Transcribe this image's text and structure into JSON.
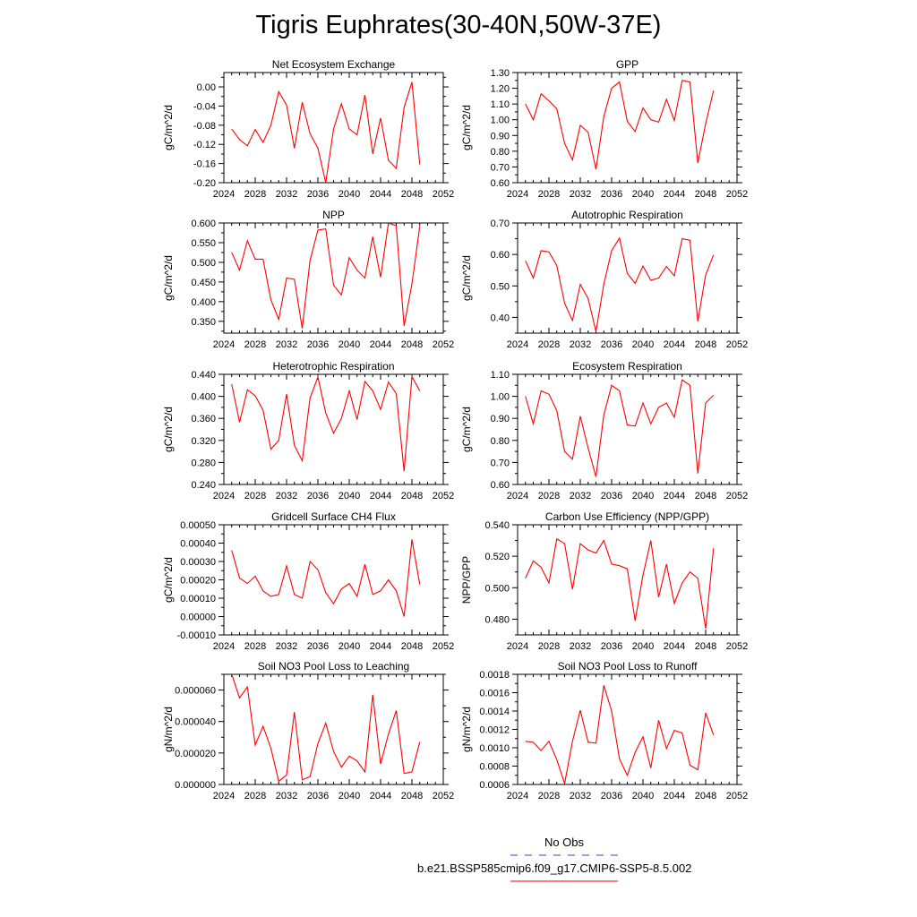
{
  "figure": {
    "title": "Tigris Euphrates(30-40N,50W-37E)"
  },
  "legend": {
    "obs_label": "No Obs",
    "model_label": "b.e21.BSSP585cmip6.f09_g17.CMIP6-SSP5-8.5.002",
    "obs_color": "#3b3bd6",
    "model_color": "#ff0000"
  },
  "chart_data": [
    {
      "type": "line",
      "title": "Net Ecosystem Exchange",
      "ylabel": "gC/m^2/d",
      "xlim": [
        2024,
        2052
      ],
      "xticks": [
        2024,
        2028,
        2032,
        2036,
        2040,
        2044,
        2048,
        2052
      ],
      "xtick_labels": [
        "2024",
        "2028",
        "2032",
        "2036",
        "2040",
        "2044",
        "2048",
        "2052"
      ],
      "ylim": [
        -0.2,
        0.03
      ],
      "yticks": [
        -0.2,
        -0.16,
        -0.12,
        -0.08,
        -0.04,
        0.0
      ],
      "ytick_labels": [
        "-0.20",
        "-0.16",
        "-0.12",
        "-0.08",
        "-0.04",
        "0.00"
      ],
      "x": [
        2025,
        2026,
        2027,
        2028,
        2029,
        2030,
        2031,
        2032,
        2033,
        2034,
        2035,
        2036,
        2037,
        2038,
        2039,
        2040,
        2041,
        2042,
        2043,
        2044,
        2045,
        2046,
        2047,
        2048,
        2049
      ],
      "series": [
        {
          "values": [
            -0.088,
            -0.11,
            -0.123,
            -0.089,
            -0.116,
            -0.08,
            -0.01,
            -0.038,
            -0.128,
            -0.032,
            -0.098,
            -0.128,
            -0.2,
            -0.088,
            -0.035,
            -0.088,
            -0.1,
            -0.017,
            -0.14,
            -0.065,
            -0.153,
            -0.17,
            -0.043,
            0.01,
            -0.162
          ]
        }
      ]
    },
    {
      "type": "line",
      "title": "GPP",
      "ylabel": "gC/m^2/d",
      "xlim": [
        2024,
        2052
      ],
      "xticks": [
        2024,
        2028,
        2032,
        2036,
        2040,
        2044,
        2048,
        2052
      ],
      "xtick_labels": [
        "2024",
        "2028",
        "2032",
        "2036",
        "2040",
        "2044",
        "2048",
        "2052"
      ],
      "ylim": [
        0.6,
        1.3
      ],
      "yticks": [
        0.6,
        0.7,
        0.8,
        0.9,
        1.0,
        1.1,
        1.2,
        1.3
      ],
      "ytick_labels": [
        "0.60",
        "0.70",
        "0.80",
        "0.90",
        "1.00",
        "1.10",
        "1.20",
        "1.30"
      ],
      "x": [
        2025,
        2026,
        2027,
        2028,
        2029,
        2030,
        2031,
        2032,
        2033,
        2034,
        2035,
        2036,
        2037,
        2038,
        2039,
        2040,
        2041,
        2042,
        2043,
        2044,
        2045,
        2046,
        2047,
        2048,
        2049
      ],
      "series": [
        {
          "values": [
            1.1,
            1.0,
            1.165,
            1.12,
            1.07,
            0.85,
            0.745,
            0.965,
            0.92,
            0.685,
            1.02,
            1.2,
            1.24,
            0.99,
            0.925,
            1.075,
            1.0,
            0.985,
            1.13,
            0.995,
            1.25,
            1.24,
            0.725,
            0.975,
            1.185
          ]
        }
      ]
    },
    {
      "type": "line",
      "title": "NPP",
      "ylabel": "gC/m^2/d",
      "xlim": [
        2024,
        2052
      ],
      "xticks": [
        2024,
        2028,
        2032,
        2036,
        2040,
        2044,
        2048,
        2052
      ],
      "xtick_labels": [
        "2024",
        "2028",
        "2032",
        "2036",
        "2040",
        "2044",
        "2048",
        "2052"
      ],
      "ylim": [
        0.32,
        0.6
      ],
      "yticks": [
        0.35,
        0.4,
        0.45,
        0.5,
        0.55,
        0.6
      ],
      "ytick_labels": [
        "0.350",
        "0.400",
        "0.450",
        "0.500",
        "0.550",
        "0.600"
      ],
      "x": [
        2025,
        2026,
        2027,
        2028,
        2029,
        2030,
        2031,
        2032,
        2033,
        2034,
        2035,
        2036,
        2037,
        2038,
        2039,
        2040,
        2041,
        2042,
        2043,
        2044,
        2045,
        2046,
        2047,
        2048,
        2049
      ],
      "series": [
        {
          "values": [
            0.525,
            0.48,
            0.555,
            0.508,
            0.508,
            0.405,
            0.355,
            0.46,
            0.457,
            0.332,
            0.505,
            0.582,
            0.585,
            0.442,
            0.417,
            0.512,
            0.48,
            0.46,
            0.565,
            0.462,
            0.6,
            0.593,
            0.338,
            0.445,
            0.592
          ]
        }
      ]
    },
    {
      "type": "line",
      "title": "Autotrophic Respiration",
      "ylabel": "gC/m^2/d",
      "xlim": [
        2024,
        2052
      ],
      "xticks": [
        2024,
        2028,
        2032,
        2036,
        2040,
        2044,
        2048,
        2052
      ],
      "xtick_labels": [
        "2024",
        "2028",
        "2032",
        "2036",
        "2040",
        "2044",
        "2048",
        "2052"
      ],
      "ylim": [
        0.35,
        0.7
      ],
      "yticks": [
        0.4,
        0.5,
        0.6,
        0.7
      ],
      "ytick_labels": [
        "0.40",
        "0.50",
        "0.60",
        "0.70"
      ],
      "x": [
        2025,
        2026,
        2027,
        2028,
        2029,
        2030,
        2031,
        2032,
        2033,
        2034,
        2035,
        2036,
        2037,
        2038,
        2039,
        2040,
        2041,
        2042,
        2043,
        2044,
        2045,
        2046,
        2047,
        2048,
        2049
      ],
      "series": [
        {
          "values": [
            0.58,
            0.525,
            0.612,
            0.608,
            0.565,
            0.445,
            0.39,
            0.505,
            0.46,
            0.355,
            0.505,
            0.612,
            0.652,
            0.54,
            0.508,
            0.563,
            0.518,
            0.525,
            0.562,
            0.532,
            0.65,
            0.645,
            0.387,
            0.535,
            0.598
          ]
        }
      ]
    },
    {
      "type": "line",
      "title": "Heterotrophic Respiration",
      "ylabel": "gC/m^2/d",
      "xlim": [
        2024,
        2052
      ],
      "xticks": [
        2024,
        2028,
        2032,
        2036,
        2040,
        2044,
        2048,
        2052
      ],
      "xtick_labels": [
        "2024",
        "2028",
        "2032",
        "2036",
        "2040",
        "2044",
        "2048",
        "2052"
      ],
      "ylim": [
        0.24,
        0.44
      ],
      "yticks": [
        0.24,
        0.28,
        0.32,
        0.36,
        0.4,
        0.44
      ],
      "ytick_labels": [
        "0.240",
        "0.280",
        "0.320",
        "0.360",
        "0.400",
        "0.440"
      ],
      "x": [
        2025,
        2026,
        2027,
        2028,
        2029,
        2030,
        2031,
        2032,
        2033,
        2034,
        2035,
        2036,
        2037,
        2038,
        2039,
        2040,
        2041,
        2042,
        2043,
        2044,
        2045,
        2046,
        2047,
        2048,
        2049
      ],
      "series": [
        {
          "values": [
            0.422,
            0.353,
            0.412,
            0.401,
            0.375,
            0.304,
            0.32,
            0.404,
            0.311,
            0.283,
            0.397,
            0.435,
            0.37,
            0.333,
            0.36,
            0.41,
            0.358,
            0.427,
            0.41,
            0.376,
            0.426,
            0.405,
            0.264,
            0.436,
            0.41
          ]
        }
      ]
    },
    {
      "type": "line",
      "title": "Ecosystem Respiration",
      "ylabel": "gC/m^2/d",
      "xlim": [
        2024,
        2052
      ],
      "xticks": [
        2024,
        2028,
        2032,
        2036,
        2040,
        2044,
        2048,
        2052
      ],
      "xtick_labels": [
        "2024",
        "2028",
        "2032",
        "2036",
        "2040",
        "2044",
        "2048",
        "2052"
      ],
      "ylim": [
        0.6,
        1.1
      ],
      "yticks": [
        0.6,
        0.7,
        0.8,
        0.9,
        1.0,
        1.1
      ],
      "ytick_labels": [
        "0.60",
        "0.70",
        "0.80",
        "0.90",
        "1.00",
        "1.10"
      ],
      "x": [
        2025,
        2026,
        2027,
        2028,
        2029,
        2030,
        2031,
        2032,
        2033,
        2034,
        2035,
        2036,
        2037,
        2038,
        2039,
        2040,
        2041,
        2042,
        2043,
        2044,
        2045,
        2046,
        2047,
        2048,
        2049
      ],
      "series": [
        {
          "values": [
            1.0,
            0.875,
            1.025,
            1.01,
            0.935,
            0.75,
            0.715,
            0.91,
            0.765,
            0.635,
            0.915,
            1.05,
            1.025,
            0.87,
            0.865,
            0.97,
            0.875,
            0.95,
            0.97,
            0.905,
            1.075,
            1.05,
            0.65,
            0.97,
            1.005
          ]
        }
      ]
    },
    {
      "type": "line",
      "title": "Gridcell Surface CH4 Flux",
      "ylabel": "gC/m^2/d",
      "xlim": [
        2024,
        2052
      ],
      "xticks": [
        2024,
        2028,
        2032,
        2036,
        2040,
        2044,
        2048,
        2052
      ],
      "xtick_labels": [
        "2024",
        "2028",
        "2032",
        "2036",
        "2040",
        "2044",
        "2048",
        "2052"
      ],
      "ylim": [
        -0.0001,
        0.0005
      ],
      "yticks": [
        -0.0001,
        0.0,
        0.0001,
        0.0002,
        0.0003,
        0.0004,
        0.0005
      ],
      "ytick_labels": [
        "-0.00010",
        "0.00000",
        "0.00010",
        "0.00020",
        "0.00030",
        "0.00040",
        "0.00050"
      ],
      "x": [
        2025,
        2026,
        2027,
        2028,
        2029,
        2030,
        2031,
        2032,
        2033,
        2034,
        2035,
        2036,
        2037,
        2038,
        2039,
        2040,
        2041,
        2042,
        2043,
        2044,
        2045,
        2046,
        2047,
        2048,
        2049
      ],
      "series": [
        {
          "values": [
            0.00036,
            0.00021,
            0.00018,
            0.00022,
            0.00014,
            0.00011,
            0.00012,
            0.000275,
            0.00012,
            0.0001,
            0.0003,
            0.000255,
            0.00013,
            7e-05,
            0.00015,
            0.00018,
            0.00011,
            0.000285,
            0.00012,
            0.00014,
            0.0002,
            0.00014,
            0.0,
            0.00042,
            0.000175
          ]
        }
      ]
    },
    {
      "type": "line",
      "title": "Carbon Use Efficiency (NPP/GPP)",
      "ylabel": "NPP/GPP",
      "xlim": [
        2024,
        2052
      ],
      "xticks": [
        2024,
        2028,
        2032,
        2036,
        2040,
        2044,
        2048,
        2052
      ],
      "xtick_labels": [
        "2024",
        "2028",
        "2032",
        "2036",
        "2040",
        "2044",
        "2048",
        "2052"
      ],
      "ylim": [
        0.47,
        0.54
      ],
      "yticks": [
        0.48,
        0.5,
        0.52,
        0.54
      ],
      "ytick_labels": [
        "0.480",
        "0.500",
        "0.520",
        "0.540"
      ],
      "x": [
        2025,
        2026,
        2027,
        2028,
        2029,
        2030,
        2031,
        2032,
        2033,
        2034,
        2035,
        2036,
        2037,
        2038,
        2039,
        2040,
        2041,
        2042,
        2043,
        2044,
        2045,
        2046,
        2047,
        2048,
        2049
      ],
      "series": [
        {
          "values": [
            0.506,
            0.517,
            0.513,
            0.503,
            0.531,
            0.528,
            0.499,
            0.528,
            0.524,
            0.522,
            0.53,
            0.515,
            0.514,
            0.512,
            0.479,
            0.508,
            0.53,
            0.494,
            0.515,
            0.49,
            0.503,
            0.51,
            0.506,
            0.474,
            0.525
          ]
        }
      ]
    },
    {
      "type": "line",
      "title": "Soil NO3 Pool Loss to Leaching",
      "ylabel": "gN/m^2/d",
      "xlim": [
        2024,
        2052
      ],
      "xticks": [
        2024,
        2028,
        2032,
        2036,
        2040,
        2044,
        2048,
        2052
      ],
      "xtick_labels": [
        "2024",
        "2028",
        "2032",
        "2036",
        "2040",
        "2044",
        "2048",
        "2052"
      ],
      "ylim": [
        0.0,
        7e-05
      ],
      "yticks": [
        0.0,
        2e-05,
        4e-05,
        6e-05
      ],
      "ytick_labels": [
        "0.000000",
        "0.000020",
        "0.000040",
        "0.000060"
      ],
      "x": [
        2025,
        2026,
        2027,
        2028,
        2029,
        2030,
        2031,
        2032,
        2033,
        2034,
        2035,
        2036,
        2037,
        2038,
        2039,
        2040,
        2041,
        2042,
        2043,
        2044,
        2045,
        2046,
        2047,
        2048,
        2049
      ],
      "series": [
        {
          "values": [
            7e-05,
            5.5e-05,
            6.2e-05,
            2.5e-05,
            3.7e-05,
            2.3e-05,
            2e-06,
            6e-06,
            4.6e-05,
            3e-06,
            5e-06,
            2.6e-05,
            3.9e-05,
            2.1e-05,
            1.1e-05,
            1.8e-05,
            1.5e-05,
            8e-06,
            5.7e-05,
            1.3e-05,
            3.2e-05,
            4.7e-05,
            7e-06,
            8e-06,
            2.7e-05
          ]
        }
      ]
    },
    {
      "type": "line",
      "title": "Soil NO3 Pool Loss to Runoff",
      "ylabel": "gN/m^2/d",
      "xlim": [
        2024,
        2052
      ],
      "xticks": [
        2024,
        2028,
        2032,
        2036,
        2040,
        2044,
        2048,
        2052
      ],
      "xtick_labels": [
        "2024",
        "2028",
        "2032",
        "2036",
        "2040",
        "2044",
        "2048",
        "2052"
      ],
      "ylim": [
        0.0006,
        0.0018
      ],
      "yticks": [
        0.0006,
        0.0008,
        0.001,
        0.0012,
        0.0014,
        0.0016,
        0.0018
      ],
      "ytick_labels": [
        "0.0006",
        "0.0008",
        "0.0010",
        "0.0012",
        "0.0014",
        "0.0016",
        "0.0018"
      ],
      "x": [
        2025,
        2026,
        2027,
        2028,
        2029,
        2030,
        2031,
        2032,
        2033,
        2034,
        2035,
        2036,
        2037,
        2038,
        2039,
        2040,
        2041,
        2042,
        2043,
        2044,
        2045,
        2046,
        2047,
        2048,
        2049
      ],
      "series": [
        {
          "values": [
            0.00107,
            0.00106,
            0.00097,
            0.00107,
            0.00087,
            0.00061,
            0.00107,
            0.00141,
            0.00106,
            0.00105,
            0.00168,
            0.0014,
            0.00088,
            0.0007,
            0.00095,
            0.00112,
            0.00078,
            0.0013,
            0.00099,
            0.00119,
            0.00116,
            0.00081,
            0.00076,
            0.00138,
            0.00114
          ]
        }
      ]
    }
  ]
}
